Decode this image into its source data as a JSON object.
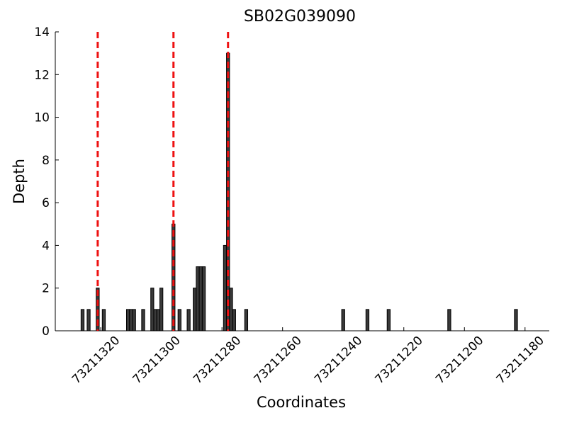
{
  "chart_data": {
    "type": "bar",
    "title": "SB02G039090",
    "x_label": "Coordinates",
    "y_label": "Depth",
    "x": [
      73211326,
      73211324,
      73211321,
      73211319,
      73211311,
      73211310,
      73211309,
      73211306,
      73211303,
      73211302,
      73211301,
      73211300,
      73211296,
      73211294,
      73211291,
      73211289,
      73211288,
      73211287,
      73211286,
      73211279,
      73211278,
      73211277,
      73211276,
      73211272,
      73211240,
      73211232,
      73211225,
      73211205,
      73211183
    ],
    "values": [
      1,
      1,
      2,
      1,
      1,
      1,
      1,
      1,
      2,
      1,
      1,
      2,
      5,
      1,
      1,
      2,
      3,
      3,
      3,
      4,
      13,
      2,
      1,
      1,
      1,
      1,
      1,
      1,
      1
    ],
    "color": "#3a3a3a",
    "edge_color": "#000000",
    "xlim": [
      73211335,
      73211172
    ],
    "xticks": [
      73211320,
      73211300,
      73211280,
      73211260,
      73211240,
      73211220,
      73211200,
      73211180
    ],
    "ylim": [
      0,
      14
    ],
    "yticks": [
      0,
      2,
      4,
      6,
      8,
      10,
      12,
      14
    ],
    "vlines": {
      "x": [
        73211321,
        73211296,
        73211278
      ],
      "color": "#ee1111"
    }
  }
}
